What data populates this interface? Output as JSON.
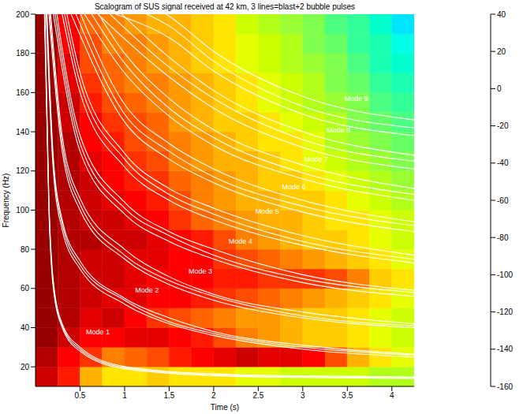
{
  "chart_data": {
    "type": "heatmap",
    "title": "Scalogram of SUS signal received at 42 km, 3 lines=blast+2 bubble pulses",
    "xlabel": "Time (s)",
    "ylabel": "Frequency (Hz)",
    "xlim": [
      0,
      4.25
    ],
    "xticks": [
      0.5,
      1,
      1.5,
      2,
      2.5,
      3,
      3.5,
      4
    ],
    "ylim": [
      10,
      200
    ],
    "yticks": [
      20,
      40,
      60,
      80,
      100,
      120,
      140,
      160,
      180,
      200
    ],
    "grid": false,
    "color": "#ffffff",
    "cells": {
      "x_edges": [
        0,
        0.25,
        0.5,
        0.75,
        1,
        1.25,
        1.5,
        1.75,
        2,
        2.25,
        2.5,
        2.75,
        3,
        3.25,
        3.5,
        3.75,
        4,
        4.25
      ],
      "y_edges": [
        10,
        20,
        30,
        40,
        50,
        60,
        70,
        80,
        90,
        100,
        110,
        120,
        130,
        140,
        150,
        160,
        170,
        180,
        190,
        200
      ],
      "values": [
        [
          30,
          10,
          -20,
          -30,
          -30,
          -25,
          -30,
          -30,
          -30,
          -35,
          -35,
          -40,
          -40,
          -40,
          -40,
          -45,
          -45
        ],
        [
          35,
          20,
          5,
          -10,
          -5,
          0,
          10,
          20,
          25,
          30,
          25,
          25,
          20,
          0,
          -20,
          -30,
          -35
        ],
        [
          40,
          30,
          15,
          20,
          25,
          25,
          20,
          10,
          0,
          -10,
          -15,
          -20,
          -25,
          -25,
          -30,
          -35,
          -40
        ],
        [
          40,
          35,
          25,
          30,
          15,
          5,
          0,
          -5,
          -10,
          -15,
          -15,
          -20,
          -25,
          -25,
          -30,
          -35,
          -40
        ],
        [
          40,
          35,
          30,
          25,
          25,
          20,
          15,
          10,
          5,
          0,
          -5,
          -10,
          -15,
          -20,
          -25,
          -30,
          -35
        ],
        [
          40,
          35,
          30,
          30,
          25,
          20,
          20,
          15,
          10,
          10,
          5,
          5,
          5,
          0,
          -10,
          -25,
          -30
        ],
        [
          40,
          35,
          30,
          30,
          25,
          25,
          20,
          15,
          5,
          0,
          -5,
          -10,
          -15,
          -20,
          -25,
          -30,
          -35
        ],
        [
          40,
          35,
          35,
          30,
          30,
          25,
          20,
          10,
          0,
          -10,
          -15,
          -20,
          -25,
          -25,
          -30,
          -35,
          -40
        ],
        [
          40,
          35,
          30,
          30,
          25,
          15,
          5,
          -5,
          -10,
          -15,
          -20,
          -20,
          -25,
          -30,
          -30,
          -35,
          -40
        ],
        [
          40,
          35,
          30,
          25,
          15,
          10,
          0,
          -10,
          -15,
          -20,
          -20,
          -25,
          -25,
          -30,
          -35,
          -40,
          -45
        ],
        [
          40,
          35,
          30,
          20,
          10,
          5,
          -5,
          -10,
          -15,
          -20,
          -25,
          -25,
          -30,
          -35,
          -40,
          -45,
          -50
        ],
        [
          40,
          35,
          25,
          15,
          5,
          0,
          -10,
          -15,
          -20,
          -20,
          -25,
          -30,
          -35,
          -40,
          -45,
          -50,
          -55
        ],
        [
          40,
          35,
          20,
          10,
          0,
          -5,
          -10,
          -15,
          -20,
          -25,
          -30,
          -30,
          -35,
          -45,
          -50,
          -55,
          -60
        ],
        [
          40,
          30,
          15,
          5,
          0,
          -5,
          -15,
          -20,
          -25,
          -25,
          -30,
          -35,
          -40,
          -45,
          -55,
          -60,
          -65
        ],
        [
          40,
          30,
          10,
          0,
          -5,
          -10,
          -15,
          -20,
          -25,
          -30,
          -35,
          -40,
          -45,
          -50,
          -55,
          -65,
          -70
        ],
        [
          40,
          25,
          5,
          -5,
          -10,
          -10,
          -15,
          -20,
          -25,
          -30,
          -35,
          -40,
          -45,
          -55,
          -60,
          -70,
          -75
        ],
        [
          40,
          25,
          0,
          -5,
          -10,
          -15,
          -20,
          -25,
          -30,
          -35,
          -40,
          -45,
          -50,
          -55,
          -65,
          -75,
          -80
        ],
        [
          40,
          20,
          0,
          -10,
          -10,
          -15,
          -20,
          -25,
          -30,
          -35,
          -40,
          -45,
          -55,
          -60,
          -70,
          -75,
          -85
        ],
        [
          40,
          20,
          -5,
          -10,
          -15,
          -20,
          -20,
          -25,
          -30,
          -40,
          -45,
          -50,
          -55,
          -65,
          -70,
          -80,
          -90
        ]
      ]
    },
    "colorbar": {
      "lim": [
        -160,
        40
      ],
      "ticks": [
        -160,
        -140,
        -120,
        -100,
        -80,
        -60,
        -40,
        -20,
        0,
        20,
        40
      ]
    },
    "curves": [
      {
        "x": [
          0.1,
          0.15,
          0.2,
          0.3,
          0.5,
          1,
          2,
          3,
          4.25
        ],
        "lines": [
          [
            200,
            100,
            60,
            40,
            28,
            19,
            15.5,
            14.5,
            14
          ],
          [
            206,
            103,
            62,
            41,
            29,
            19.6,
            16,
            14.9,
            14.4
          ],
          [
            212,
            106,
            64,
            42,
            30,
            20.1,
            16.4,
            15.4,
            14.8
          ]
        ]
      },
      {
        "x": [
          0.12,
          0.2,
          0.3,
          0.5,
          1,
          1.5,
          2,
          3,
          4.25
        ],
        "lines": [
          [
            200,
            120,
            90,
            70,
            52,
            42,
            36,
            29,
            25
          ],
          [
            206,
            124,
            93,
            72,
            54,
            43,
            37,
            30,
            26
          ],
          [
            212,
            127,
            95,
            74,
            55,
            45,
            38,
            31,
            26.5
          ]
        ]
      },
      {
        "x": [
          0.15,
          0.3,
          0.5,
          1,
          1.5,
          2,
          3,
          4.25
        ],
        "lines": [
          [
            200,
            130,
            100,
            75,
            62,
            54,
            45,
            40
          ],
          [
            206,
            134,
            103,
            77,
            64,
            56,
            46,
            41
          ],
          [
            212,
            138,
            106,
            80,
            66,
            57,
            48,
            42
          ]
        ]
      },
      {
        "x": [
          0.2,
          0.5,
          1,
          1.5,
          2,
          3,
          4.25
        ],
        "lines": [
          [
            200,
            130,
            98,
            84,
            75,
            63,
            56
          ],
          [
            206,
            134,
            101,
            87,
            77,
            65,
            58
          ],
          [
            212,
            138,
            104,
            89,
            80,
            67,
            59
          ]
        ]
      },
      {
        "x": [
          0.3,
          0.5,
          1,
          1.5,
          2,
          3,
          4.25
        ],
        "lines": [
          [
            200,
            160,
            122,
            105,
            95,
            82,
            73
          ],
          [
            206,
            165,
            126,
            108,
            98,
            84,
            75
          ],
          [
            212,
            170,
            129,
            111,
            101,
            87,
            77
          ]
        ]
      },
      {
        "x": [
          0.4,
          1,
          1.5,
          2,
          3,
          4.25
        ],
        "lines": [
          [
            200,
            145,
            126,
            114,
            99,
            89
          ],
          [
            206,
            149,
            130,
            117,
            102,
            92
          ],
          [
            212,
            154,
            134,
            121,
            105,
            94
          ]
        ]
      },
      {
        "x": [
          0.55,
          1,
          1.5,
          2,
          3,
          4.25
        ],
        "lines": [
          [
            200,
            170,
            148,
            133,
            116,
            105
          ],
          [
            206,
            175,
            152,
            137,
            119,
            108
          ],
          [
            212,
            180,
            157,
            141,
            123,
            111
          ]
        ]
      },
      {
        "x": [
          0.7,
          1.5,
          2,
          3,
          4.25
        ],
        "lines": [
          [
            200,
            168,
            152,
            132,
            121
          ],
          [
            206,
            173,
            157,
            136,
            125
          ],
          [
            212,
            178,
            161,
            140,
            128
          ]
        ]
      },
      {
        "x": [
          0.9,
          1.5,
          2,
          3,
          4.25
        ],
        "lines": [
          [
            200,
            188,
            171,
            149,
            138
          ],
          [
            206,
            194,
            176,
            153,
            142
          ],
          [
            212,
            199,
            181,
            158,
            146
          ]
        ]
      }
    ],
    "annotations": [
      {
        "text": "Mode 1",
        "x": 0.7,
        "y": 38
      },
      {
        "text": "Mode 2",
        "x": 1.25,
        "y": 59
      },
      {
        "text": "Mode 3",
        "x": 1.85,
        "y": 69
      },
      {
        "text": "Mode 4",
        "x": 2.3,
        "y": 84
      },
      {
        "text": "Mode 5",
        "x": 2.6,
        "y": 99.5
      },
      {
        "text": "Mode 6",
        "x": 2.9,
        "y": 112
      },
      {
        "text": "Mode 7",
        "x": 3.15,
        "y": 126
      },
      {
        "text": "Mode 8",
        "x": 3.4,
        "y": 141
      },
      {
        "text": "Mode 9",
        "x": 3.6,
        "y": 157
      }
    ]
  }
}
